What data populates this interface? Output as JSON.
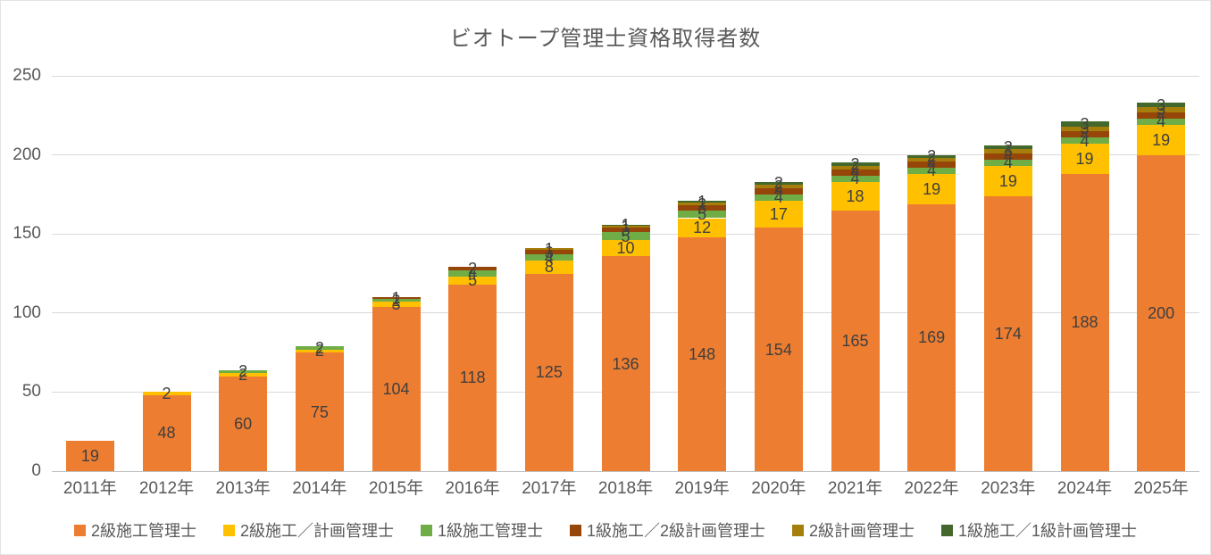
{
  "chart_data": {
    "type": "bar",
    "stacked": true,
    "title": "ビオトープ管理士資格取得者数",
    "categories": [
      "2011年",
      "2012年",
      "2013年",
      "2014年",
      "2015年",
      "2016年",
      "2017年",
      "2018年",
      "2019年",
      "2020年",
      "2021年",
      "2022年",
      "2023年",
      "2024年",
      "2025年"
    ],
    "series": [
      {
        "name": "2級施工管理士",
        "color": "#ED7D31",
        "values": [
          19,
          48,
          60,
          75,
          104,
          118,
          125,
          136,
          148,
          154,
          165,
          169,
          174,
          188,
          200
        ]
      },
      {
        "name": "2級施工／計画管理士",
        "color": "#FFC000",
        "values": [
          0,
          2,
          2,
          2,
          3,
          5,
          8,
          10,
          12,
          17,
          18,
          19,
          19,
          19,
          19
        ]
      },
      {
        "name": "1級施工管理士",
        "color": "#70AD47",
        "values": [
          0,
          0,
          2,
          2,
          2,
          4,
          4,
          5,
          5,
          4,
          4,
          4,
          4,
          4,
          4
        ]
      },
      {
        "name": "1級施工／2級計画管理士",
        "color": "#964609",
        "values": [
          0,
          0,
          0,
          0,
          1,
          2,
          3,
          3,
          3,
          4,
          4,
          4,
          4,
          4,
          4
        ]
      },
      {
        "name": "2級計画管理士",
        "color": "#A57E0B",
        "values": [
          0,
          0,
          0,
          0,
          0,
          0,
          1,
          1,
          2,
          2,
          2,
          2,
          3,
          3,
          3
        ]
      },
      {
        "name": "1級施工／1級計画管理士",
        "color": "#44682B",
        "values": [
          0,
          0,
          0,
          0,
          0,
          0,
          0,
          1,
          1,
          2,
          2,
          2,
          2,
          3,
          3
        ]
      }
    ],
    "y_axis": {
      "min": 0,
      "max": 250,
      "step": 50,
      "tick_labels": [
        "0",
        "50",
        "100",
        "150",
        "200",
        "250"
      ]
    },
    "grid": true,
    "legend_position": "bottom",
    "data_labels": true,
    "colors": {
      "title_text": "#595959",
      "axis_text": "#595959",
      "data_label_text": "#3f3f3f",
      "gridline": "#d9d9d9",
      "background": "#ffffff"
    }
  }
}
